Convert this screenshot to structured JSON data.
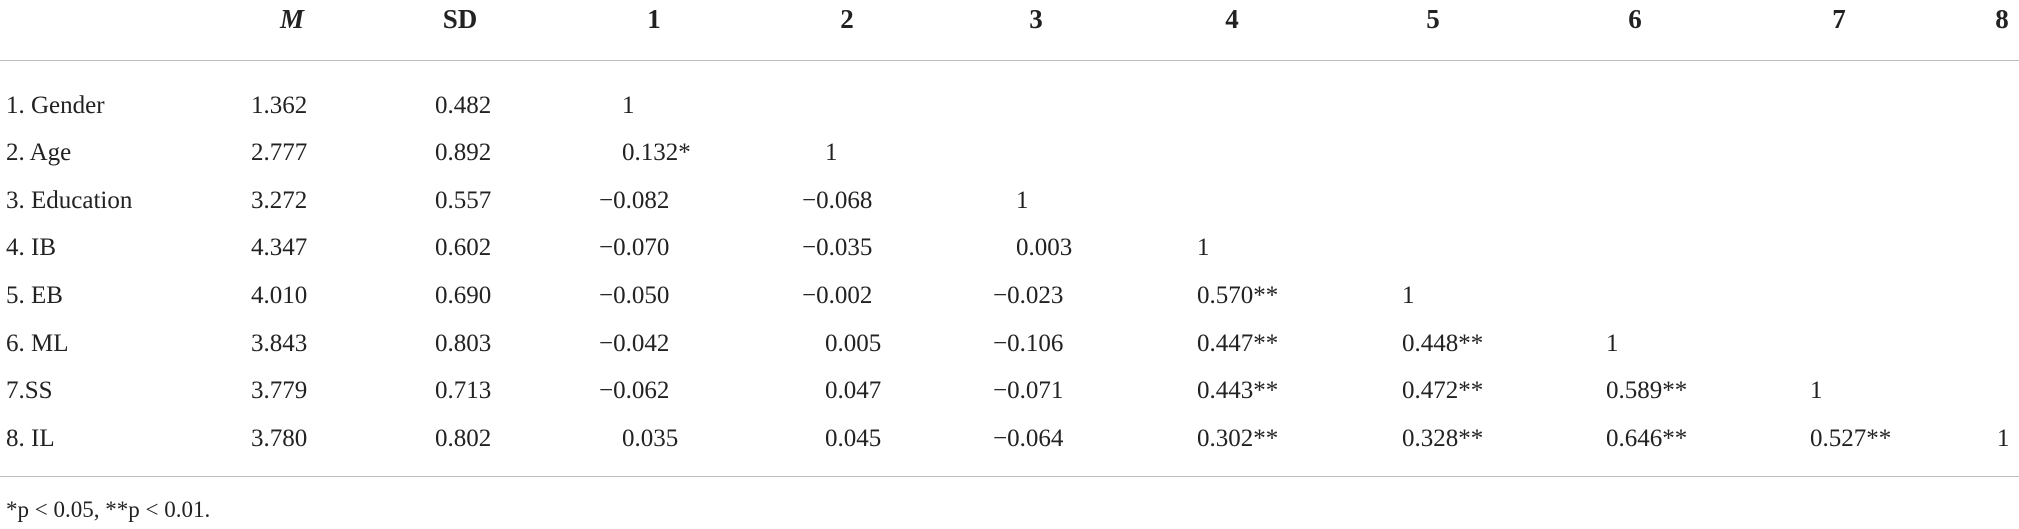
{
  "table": {
    "header": [
      "M",
      "SD",
      "1",
      "2",
      "3",
      "4",
      "5",
      "6",
      "7",
      "8"
    ],
    "rows": [
      [
        "1. Gender",
        "1.362",
        "0.482",
        "1"
      ],
      [
        "2. Age",
        "2.777",
        "0.892",
        "0.132*",
        "1"
      ],
      [
        "3. Education",
        "3.272",
        "0.557",
        "−0.082",
        "−0.068",
        "1"
      ],
      [
        "4. IB",
        "4.347",
        "0.602",
        "−0.070",
        "−0.035",
        "0.003",
        "1"
      ],
      [
        "5. EB",
        "4.010",
        "0.690",
        "−0.050",
        "−0.002",
        "−0.023",
        "0.570**",
        "1"
      ],
      [
        "6. ML",
        "3.843",
        "0.803",
        "−0.042",
        "0.005",
        "−0.106",
        "0.447**",
        "0.448**",
        "1"
      ],
      [
        "7.SS",
        "3.779",
        "0.713",
        "−0.062",
        "0.047",
        "−0.071",
        "0.443**",
        "0.472**",
        "0.589**",
        "1"
      ],
      [
        "8. IL",
        "3.780",
        "0.802",
        "0.035",
        "0.045",
        "−0.064",
        "0.302**",
        "0.328**",
        "0.646**",
        "0.527**",
        "1"
      ]
    ]
  },
  "footnote": "*p < 0.05, **p < 0.01."
}
